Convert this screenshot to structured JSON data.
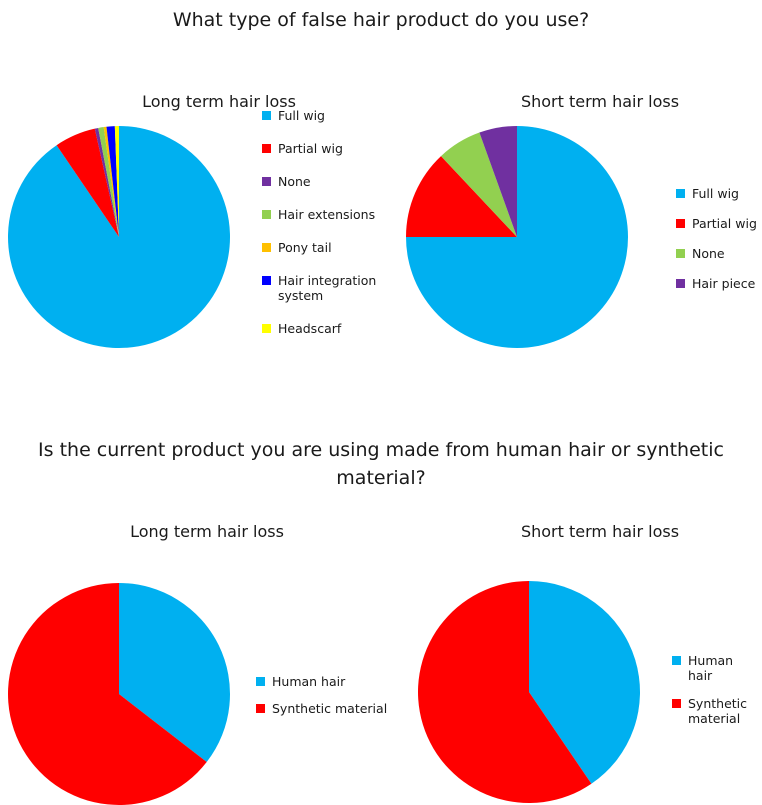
{
  "headings": {
    "q1": "What type of false hair product do you use?",
    "q2": "Is the current product you are using made from human hair or synthetic material?"
  },
  "chart_data": [
    {
      "type": "pie",
      "title": "Long term hair loss",
      "categories": [
        "Full wig",
        "Partial wig",
        "None",
        "Hair extensions",
        "Pony tail",
        "Hair integration system",
        "Headscarf"
      ],
      "values": [
        90.5,
        6.0,
        0.5,
        0.8,
        0.4,
        1.2,
        0.6
      ],
      "colors": [
        "#00b0f0",
        "#ff0000",
        "#7030a0",
        "#92d050",
        "#ffc000",
        "#0000ff",
        "#ffff00"
      ],
      "legend": "right"
    },
    {
      "type": "pie",
      "title": "Short term hair loss",
      "categories": [
        "Full wig",
        "Partial wig",
        "None",
        "Hair piece"
      ],
      "values": [
        75.0,
        13.0,
        6.5,
        5.5
      ],
      "colors": [
        "#00b0f0",
        "#ff0000",
        "#92d050",
        "#7030a0"
      ],
      "legend": "right"
    },
    {
      "type": "pie",
      "title": "Long term hair loss",
      "categories": [
        "Human hair",
        "Synthetic material"
      ],
      "values": [
        35.5,
        64.5
      ],
      "colors": [
        "#00b0f0",
        "#ff0000"
      ],
      "legend": "right"
    },
    {
      "type": "pie",
      "title": "Short term hair loss",
      "categories": [
        "Human hair",
        "Synthetic material"
      ],
      "values": [
        40.5,
        59.5
      ],
      "colors": [
        "#00b0f0",
        "#ff0000"
      ],
      "legend": "right"
    }
  ]
}
